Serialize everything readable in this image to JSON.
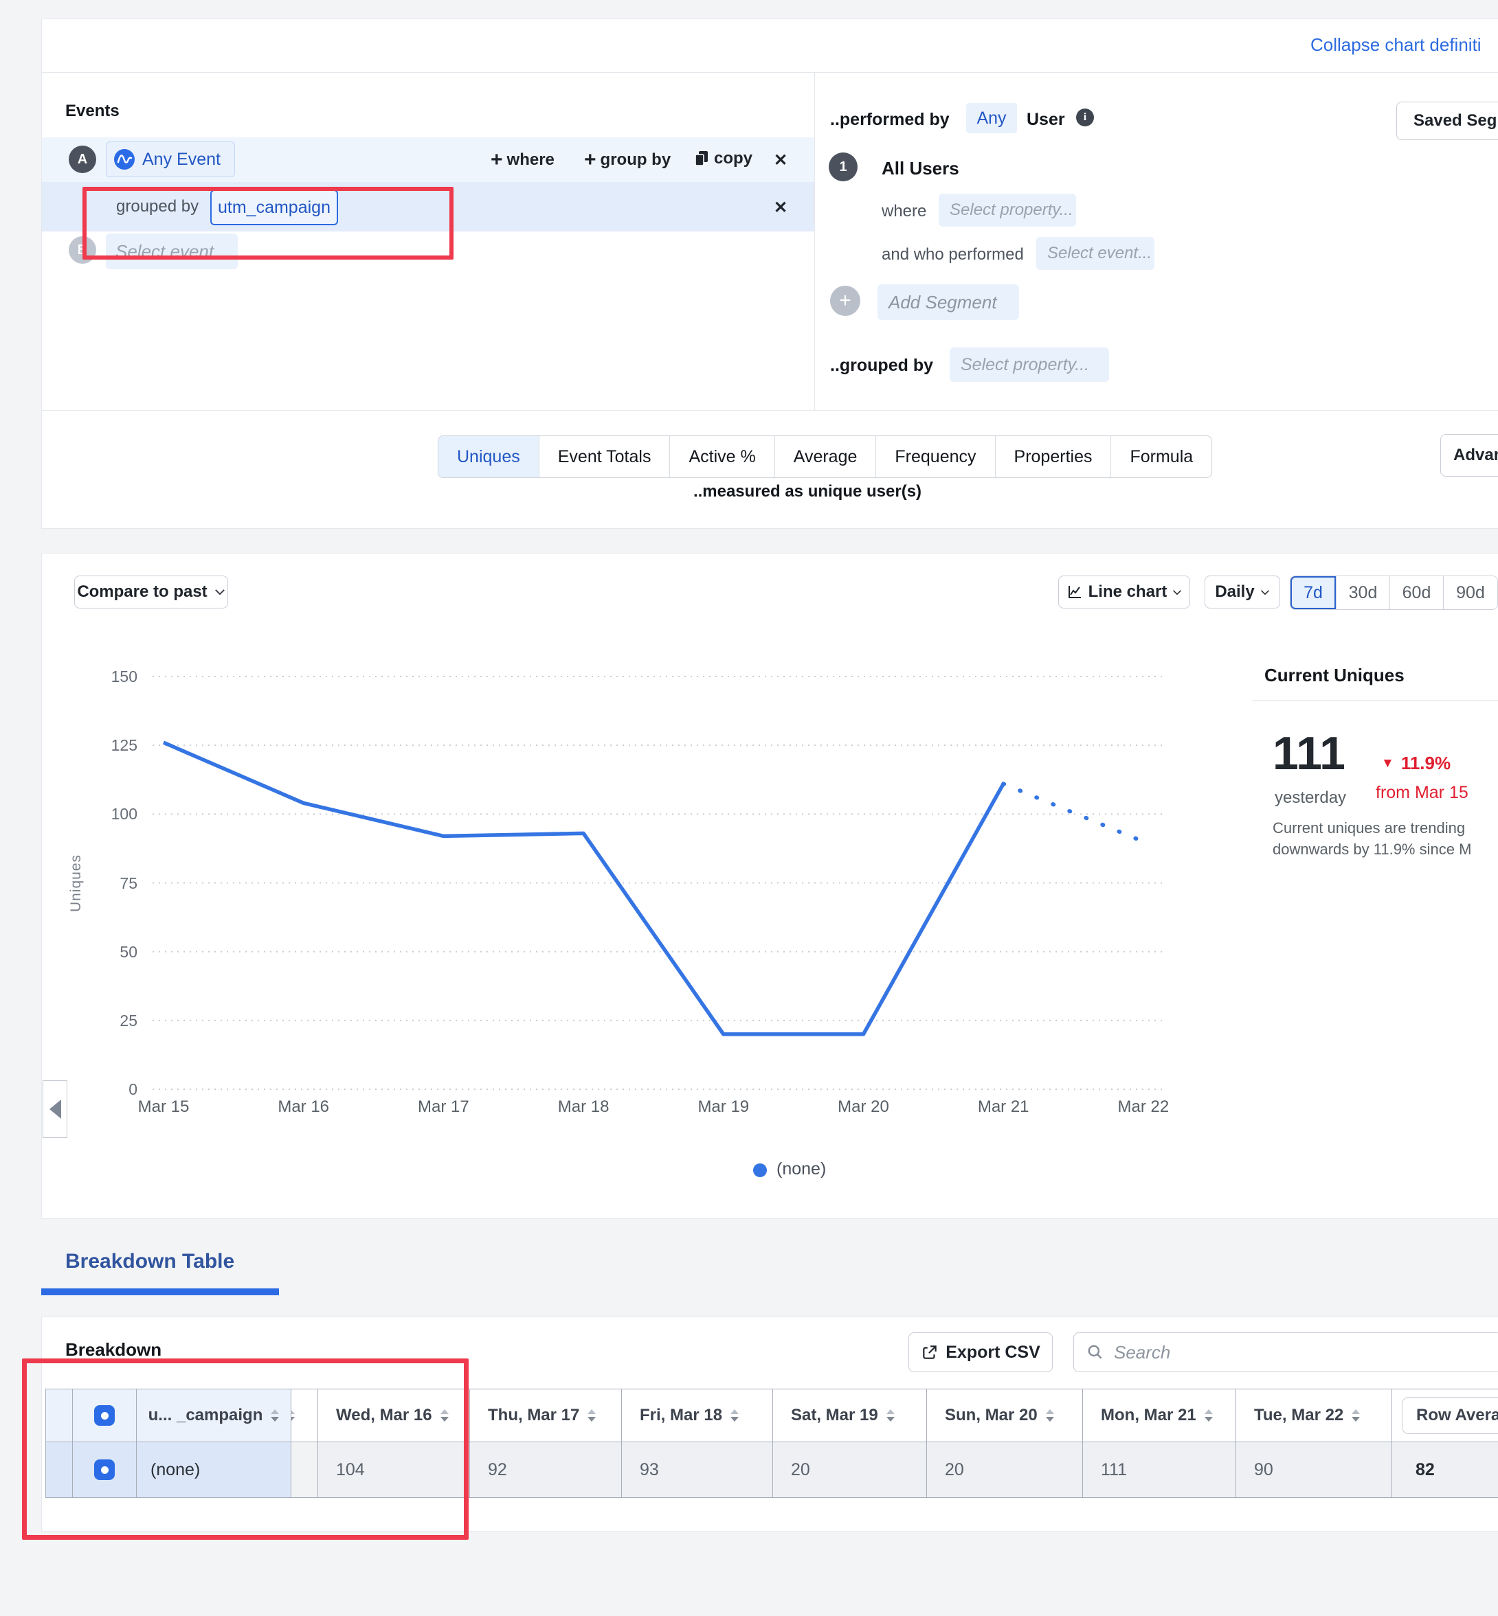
{
  "page": {
    "collapse_link": "Collapse chart definiti"
  },
  "events": {
    "title": "Events",
    "row_a_badge": "A",
    "row_a_event": "Any Event",
    "action_where": "where",
    "action_group_by": "group by",
    "action_copy": "copy",
    "close_x": "✕",
    "grouped_by_label": "grouped by",
    "grouped_by_value": "utm_campaign",
    "row_b_badge": "B",
    "row_b_placeholder": "Select event..."
  },
  "segment": {
    "performed_by": "..performed by",
    "any": "Any",
    "user": "User",
    "saved_segment": "Saved Segme",
    "number": "1",
    "all_users": "All Users",
    "where": "where",
    "where_placeholder": "Select property...",
    "who": "and who performed",
    "who_placeholder": "Select event...",
    "add_plus": "+",
    "add_segment": "Add Segment",
    "grouped_by": "..grouped by",
    "grouped_by_placeholder": "Select property..."
  },
  "metrics": {
    "tabs": [
      "Uniques",
      "Event Totals",
      "Active %",
      "Average",
      "Frequency",
      "Properties",
      "Formula"
    ],
    "active_tab": "Uniques",
    "advanced": "Advan",
    "measured_as": "..measured as unique user(s)"
  },
  "controls": {
    "compare": "Compare to past",
    "chart_type": "Line chart",
    "granularity": "Daily",
    "ranges": [
      "7d",
      "30d",
      "60d",
      "90d"
    ],
    "active_range": "7d"
  },
  "chart_data": {
    "type": "line",
    "x": [
      "Mar 15",
      "Mar 16",
      "Mar 17",
      "Mar 18",
      "Mar 19",
      "Mar 20",
      "Mar 21",
      "Mar 22"
    ],
    "series": [
      {
        "name": "(none)",
        "color": "#3575e3",
        "values": [
          126,
          104,
          92,
          93,
          20,
          20,
          111,
          90
        ],
        "dotted_from_index": 6
      }
    ],
    "ylabel": "Uniques",
    "ylim": [
      0,
      150
    ],
    "yticks": [
      0,
      25,
      50,
      75,
      100,
      125,
      150
    ],
    "grid": "dotted-horizontal",
    "legend_position": "bottom"
  },
  "summary": {
    "title": "Current Uniques",
    "value": "111",
    "period": "yesterday",
    "delta_icon": "▼",
    "delta": "11.9%",
    "delta_from": "from Mar 15",
    "description": "Current uniques are trending downwards by 11.9% since M"
  },
  "legend": {
    "label": "(none)"
  },
  "breakdown": {
    "section_title": "Breakdown Table",
    "panel_title": "Breakdown",
    "export": "Export CSV",
    "search_placeholder": "Search",
    "table": {
      "group_header": "u... _campaign",
      "date_headers": [
        "Wed, Mar 16",
        "Thu, Mar 17",
        "Fri, Mar 18",
        "Sat, Mar 19",
        "Sun, Mar 20",
        "Mon, Mar 21",
        "Tue, Mar 22"
      ],
      "row_average_header": "Row Avera",
      "rows": [
        {
          "group": "(none)",
          "values": [
            "104",
            "92",
            "93",
            "20",
            "20",
            "111",
            "90"
          ],
          "row_average": "82"
        }
      ]
    }
  },
  "colors": {
    "accent_blue": "#2c6be4",
    "chart_line": "#3575e3",
    "annotation_red": "#ee3a4c",
    "delta_red": "#e01f30"
  }
}
